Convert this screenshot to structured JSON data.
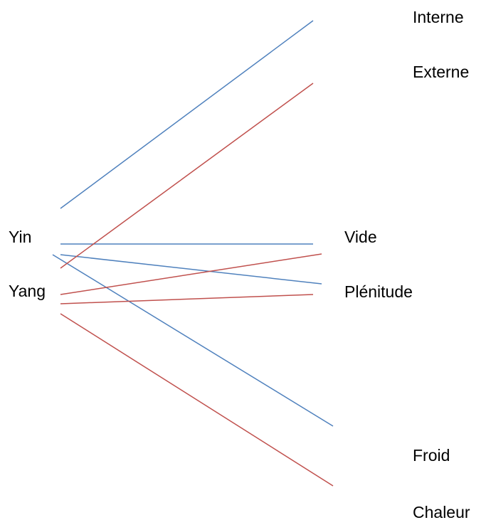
{
  "labels": {
    "yin": "Yin",
    "yang": "Yang",
    "vide": "Vide",
    "plenitude": "Plénitude",
    "interne": "Interne",
    "externe": "Externe",
    "froid": "Froid",
    "chaleur": "Chaleur"
  },
  "colors": {
    "yin_lines": "#4f81bd",
    "yang_lines": "#c0504d"
  },
  "connections": [
    {
      "from": "yin",
      "to": "interne",
      "color": "yin_lines"
    },
    {
      "from": "yin",
      "to": "vide",
      "color": "yin_lines"
    },
    {
      "from": "yin",
      "to": "plenitude",
      "color": "yin_lines"
    },
    {
      "from": "yin",
      "to": "froid",
      "color": "yin_lines"
    },
    {
      "from": "yang",
      "to": "externe",
      "color": "yang_lines"
    },
    {
      "from": "yang",
      "to": "vide",
      "color": "yang_lines"
    },
    {
      "from": "yang",
      "to": "plenitude",
      "color": "yang_lines"
    },
    {
      "from": "yang",
      "to": "chaleur",
      "color": "yang_lines"
    }
  ]
}
